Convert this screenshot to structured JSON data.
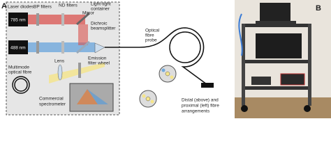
{
  "panel_a": {
    "label": "A",
    "laser_diodes": "Laser diodes",
    "bp_filters": "BP filters",
    "nd_filters": "ND filters",
    "mirror": "Mirror",
    "container": [
      "Light-tight",
      "container"
    ],
    "laser_1": "785 nm",
    "laser_2": "488 nm",
    "beamsplitter": [
      "Dichroic",
      "beamsplitter"
    ],
    "probe": [
      "Optical",
      "fibre",
      "probe"
    ],
    "filter_wheel": [
      "Emission",
      "filter wheel"
    ],
    "lens": "Lens",
    "multimode": [
      "Multimode",
      "optical fibre"
    ],
    "spectrometer": [
      "Commercial",
      "spectrometer"
    ],
    "arrangements": [
      "Distal (above) and",
      "proximal (left) fibre",
      "arrangements"
    ]
  },
  "panel_b": {
    "label": "B"
  }
}
